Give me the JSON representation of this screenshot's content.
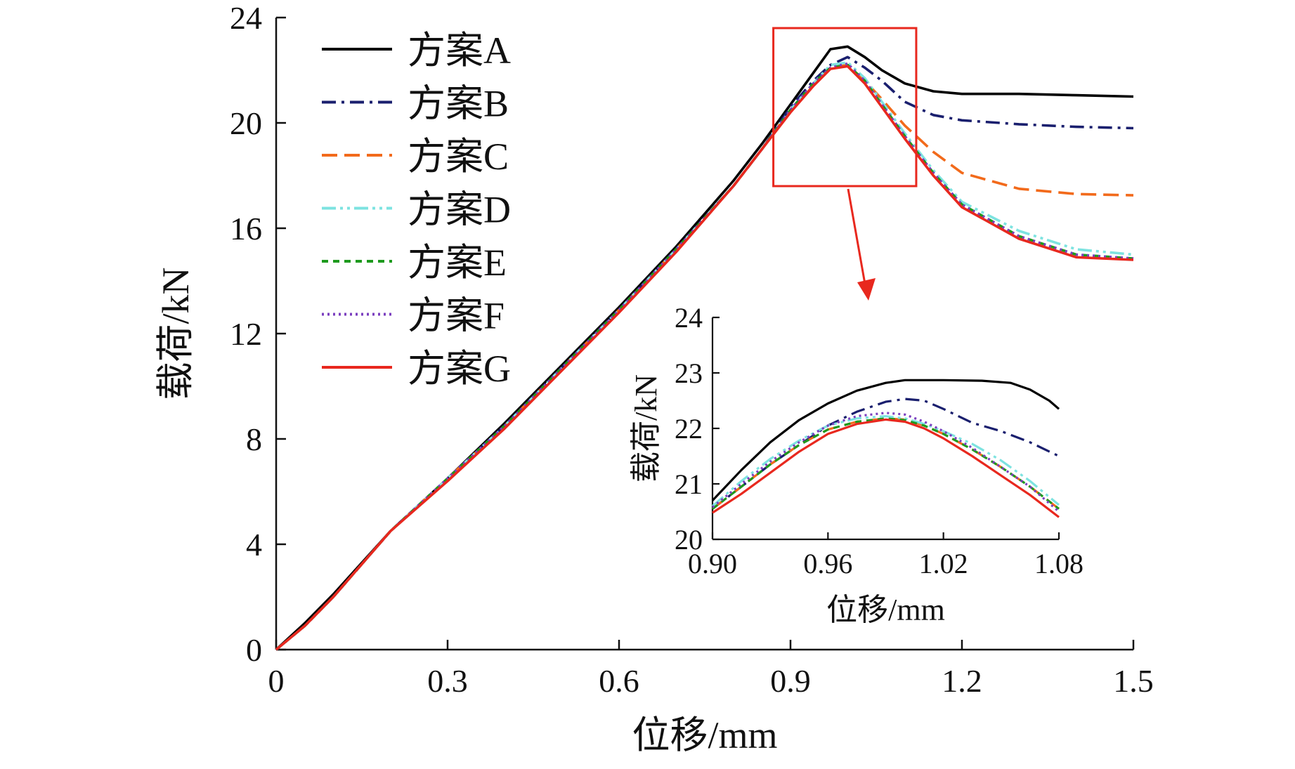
{
  "chart_data": [
    {
      "type": "line",
      "xlabel": "位移/mm",
      "ylabel": "载荷/kN",
      "xlim": [
        0,
        1.5
      ],
      "ylim": [
        0,
        24
      ],
      "xticks": [
        "0",
        "0.3",
        "0.6",
        "0.9",
        "1.2",
        "1.5"
      ],
      "yticks": [
        "0",
        "4",
        "8",
        "12",
        "16",
        "20",
        "24"
      ],
      "legend_position": "top-left",
      "series": [
        {
          "name": "方案A",
          "color": "#000000",
          "dash": "solid",
          "x": [
            0,
            0.05,
            0.1,
            0.2,
            0.3,
            0.4,
            0.5,
            0.6,
            0.7,
            0.8,
            0.85,
            0.9,
            0.94,
            0.97,
            1.0,
            1.03,
            1.06,
            1.1,
            1.15,
            1.2,
            1.3,
            1.4,
            1.5
          ],
          "y": [
            0,
            1.0,
            2.1,
            4.5,
            6.5,
            8.6,
            10.8,
            13.0,
            15.3,
            17.8,
            19.2,
            20.7,
            21.9,
            22.8,
            22.9,
            22.5,
            22.0,
            21.5,
            21.2,
            21.1,
            21.1,
            21.05,
            21.0
          ]
        },
        {
          "name": "方案B",
          "color": "#1a1f6e",
          "dash": "dashdot",
          "x": [
            0,
            0.05,
            0.1,
            0.2,
            0.3,
            0.4,
            0.5,
            0.6,
            0.7,
            0.8,
            0.85,
            0.9,
            0.94,
            0.97,
            1.0,
            1.03,
            1.06,
            1.1,
            1.15,
            1.2,
            1.3,
            1.4,
            1.5
          ],
          "y": [
            0,
            0.9,
            2.0,
            4.5,
            6.5,
            8.5,
            10.7,
            12.9,
            15.2,
            17.6,
            19.0,
            20.6,
            21.6,
            22.2,
            22.5,
            22.1,
            21.6,
            20.8,
            20.3,
            20.1,
            19.95,
            19.85,
            19.8
          ]
        },
        {
          "name": "方案C",
          "color": "#f26a1b",
          "dash": "dash",
          "x": [
            0,
            0.05,
            0.1,
            0.2,
            0.3,
            0.4,
            0.5,
            0.6,
            0.7,
            0.8,
            0.85,
            0.9,
            0.94,
            0.97,
            1.0,
            1.03,
            1.06,
            1.1,
            1.15,
            1.2,
            1.3,
            1.4,
            1.5
          ],
          "y": [
            0,
            0.9,
            2.0,
            4.5,
            6.5,
            8.5,
            10.7,
            12.9,
            15.2,
            17.6,
            19.0,
            20.5,
            21.4,
            22.1,
            22.2,
            21.6,
            20.9,
            19.9,
            18.9,
            18.1,
            17.5,
            17.3,
            17.25
          ]
        },
        {
          "name": "方案D",
          "color": "#7de3e0",
          "dash": "dashdotdot",
          "x": [
            0,
            0.05,
            0.1,
            0.2,
            0.3,
            0.4,
            0.5,
            0.6,
            0.7,
            0.8,
            0.85,
            0.9,
            0.94,
            0.97,
            1.0,
            1.03,
            1.06,
            1.1,
            1.15,
            1.2,
            1.3,
            1.4,
            1.5
          ],
          "y": [
            0,
            0.9,
            2.0,
            4.5,
            6.5,
            8.5,
            10.7,
            12.9,
            15.2,
            17.6,
            19.0,
            20.5,
            21.5,
            22.2,
            22.3,
            21.7,
            20.8,
            19.6,
            18.2,
            17.0,
            15.9,
            15.2,
            15.0
          ]
        },
        {
          "name": "方案E",
          "color": "#1e9a1e",
          "dash": "shortdash",
          "x": [
            0,
            0.05,
            0.1,
            0.2,
            0.3,
            0.4,
            0.5,
            0.6,
            0.7,
            0.8,
            0.85,
            0.9,
            0.94,
            0.97,
            1.0,
            1.03,
            1.06,
            1.1,
            1.15,
            1.2,
            1.3,
            1.4,
            1.5
          ],
          "y": [
            0,
            0.9,
            2.0,
            4.5,
            6.5,
            8.5,
            10.7,
            12.9,
            15.2,
            17.6,
            19.0,
            20.5,
            21.5,
            22.1,
            22.2,
            21.6,
            20.7,
            19.5,
            18.1,
            16.9,
            15.7,
            15.0,
            14.85
          ]
        },
        {
          "name": "方案F",
          "color": "#7b3fbf",
          "dash": "dot",
          "x": [
            0,
            0.05,
            0.1,
            0.2,
            0.3,
            0.4,
            0.5,
            0.6,
            0.7,
            0.8,
            0.85,
            0.9,
            0.94,
            0.97,
            1.0,
            1.03,
            1.06,
            1.1,
            1.15,
            1.2,
            1.3,
            1.4,
            1.5
          ],
          "y": [
            0,
            0.9,
            2.0,
            4.5,
            6.5,
            8.5,
            10.7,
            12.9,
            15.2,
            17.6,
            19.0,
            20.5,
            21.5,
            22.1,
            22.25,
            21.6,
            20.7,
            19.5,
            18.1,
            16.9,
            15.7,
            15.0,
            14.85
          ]
        },
        {
          "name": "方案G",
          "color": "#e8281e",
          "dash": "solid",
          "x": [
            0,
            0.05,
            0.1,
            0.2,
            0.3,
            0.4,
            0.5,
            0.6,
            0.7,
            0.8,
            0.85,
            0.9,
            0.94,
            0.97,
            1.0,
            1.03,
            1.06,
            1.1,
            1.15,
            1.2,
            1.3,
            1.4,
            1.5
          ],
          "y": [
            0,
            0.9,
            2.0,
            4.5,
            6.4,
            8.4,
            10.6,
            12.8,
            15.1,
            17.6,
            19.0,
            20.4,
            21.4,
            22.05,
            22.15,
            21.5,
            20.6,
            19.4,
            18.0,
            16.8,
            15.6,
            14.9,
            14.8
          ]
        }
      ]
    },
    {
      "type": "line",
      "xlabel": "位移/mm",
      "ylabel": "载荷/kN",
      "xlim": [
        0.9,
        1.08
      ],
      "ylim": [
        20,
        24
      ],
      "xticks": [
        "0.90",
        "0.96",
        "1.02",
        "1.08"
      ],
      "yticks": [
        "20",
        "21",
        "22",
        "23",
        "24"
      ],
      "series": [
        {
          "name": "方案A",
          "color": "#000000",
          "dash": "solid",
          "x": [
            0.9,
            0.915,
            0.93,
            0.945,
            0.96,
            0.975,
            0.99,
            1.0,
            1.02,
            1.04,
            1.055,
            1.065,
            1.075,
            1.08
          ],
          "y": [
            20.7,
            21.25,
            21.75,
            22.15,
            22.45,
            22.68,
            22.82,
            22.87,
            22.87,
            22.86,
            22.82,
            22.7,
            22.5,
            22.35
          ]
        },
        {
          "name": "方案B",
          "color": "#1a1f6e",
          "dash": "dashdot",
          "x": [
            0.9,
            0.915,
            0.93,
            0.945,
            0.96,
            0.975,
            0.99,
            1.0,
            1.01,
            1.02,
            1.035,
            1.05,
            1.065,
            1.08
          ],
          "y": [
            20.55,
            20.95,
            21.35,
            21.7,
            22.05,
            22.3,
            22.48,
            22.53,
            22.5,
            22.35,
            22.1,
            21.95,
            21.75,
            21.5
          ]
        },
        {
          "name": "方案C",
          "color": "#f26a1b",
          "dash": "dash",
          "x": [
            0.9,
            0.915,
            0.93,
            0.945,
            0.96,
            0.975,
            0.99,
            1.0,
            1.01,
            1.02,
            1.035,
            1.05,
            1.065,
            1.08
          ],
          "y": [
            20.55,
            20.95,
            21.35,
            21.7,
            21.98,
            22.12,
            22.18,
            22.16,
            22.05,
            21.9,
            21.62,
            21.3,
            20.95,
            20.55
          ]
        },
        {
          "name": "方案D",
          "color": "#7de3e0",
          "dash": "dashdotdot",
          "x": [
            0.9,
            0.915,
            0.93,
            0.945,
            0.96,
            0.975,
            0.99,
            1.0,
            1.01,
            1.02,
            1.035,
            1.05,
            1.065,
            1.08
          ],
          "y": [
            20.6,
            21.05,
            21.45,
            21.78,
            22.05,
            22.18,
            22.22,
            22.18,
            22.08,
            21.95,
            21.72,
            21.42,
            21.05,
            20.62
          ]
        },
        {
          "name": "方案E",
          "color": "#1e9a1e",
          "dash": "shortdash",
          "x": [
            0.9,
            0.915,
            0.93,
            0.945,
            0.96,
            0.975,
            0.99,
            1.0,
            1.01,
            1.02,
            1.035,
            1.05,
            1.065,
            1.08
          ],
          "y": [
            20.55,
            20.95,
            21.35,
            21.7,
            21.98,
            22.12,
            22.18,
            22.15,
            22.05,
            21.9,
            21.62,
            21.3,
            20.95,
            20.55
          ]
        },
        {
          "name": "方案F",
          "color": "#7b3fbf",
          "dash": "dot",
          "x": [
            0.9,
            0.915,
            0.93,
            0.945,
            0.96,
            0.975,
            0.99,
            1.0,
            1.01,
            1.02,
            1.035,
            1.05,
            1.065,
            1.08
          ],
          "y": [
            20.58,
            21.0,
            21.4,
            21.75,
            22.05,
            22.22,
            22.28,
            22.25,
            22.12,
            21.95,
            21.65,
            21.3,
            20.95,
            20.5
          ]
        },
        {
          "name": "方案G",
          "color": "#e8281e",
          "dash": "solid",
          "x": [
            0.9,
            0.915,
            0.93,
            0.945,
            0.96,
            0.975,
            0.99,
            1.0,
            1.01,
            1.02,
            1.035,
            1.05,
            1.065,
            1.08
          ],
          "y": [
            20.48,
            20.82,
            21.2,
            21.58,
            21.9,
            22.08,
            22.16,
            22.12,
            22.0,
            21.82,
            21.5,
            21.15,
            20.8,
            20.4
          ]
        }
      ]
    }
  ],
  "colors": {
    "zoom_box": "#e8281e",
    "axis": "#111111"
  }
}
